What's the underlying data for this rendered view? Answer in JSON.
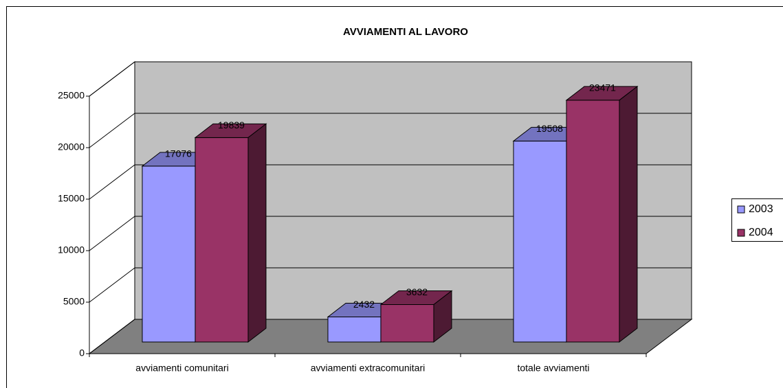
{
  "chart_data": {
    "type": "bar3d",
    "title": "AVVIAMENTI AL LAVORO",
    "categories": [
      "avviamenti comunitari",
      "avviamenti extracomunitari",
      "totale avviamenti"
    ],
    "series": [
      {
        "name": "2003",
        "color": "#9999ff",
        "values": [
          17076,
          2432,
          19508
        ]
      },
      {
        "name": "2004",
        "color": "#993366",
        "values": [
          19839,
          3632,
          23471
        ]
      }
    ],
    "ylim": [
      0,
      25000
    ],
    "yticks": [
      0,
      5000,
      10000,
      15000,
      20000,
      25000
    ],
    "grid": true,
    "legend": "right"
  }
}
